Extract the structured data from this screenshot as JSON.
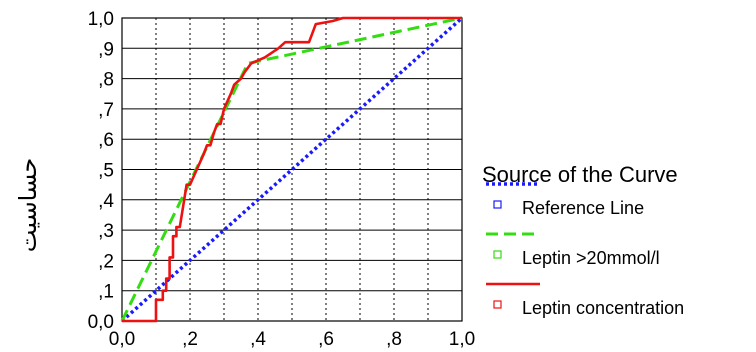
{
  "chart_data": {
    "type": "line",
    "ylabel": "حساسیت",
    "xlabel": "",
    "xlim": [
      0,
      1
    ],
    "ylim": [
      0,
      1
    ],
    "x_ticks": [
      "0,0",
      ",2",
      ",4",
      ",6",
      ",8",
      "1,0"
    ],
    "y_ticks": [
      "0,0",
      ",1",
      ",2",
      ",3",
      ",4",
      ",5",
      ",6",
      ",7",
      ",8",
      ",9",
      "1,0"
    ],
    "grid": {
      "horizontal": "solid",
      "vertical": "dotted"
    },
    "legend": {
      "title": "Source of the Curve",
      "placement": "right"
    },
    "series": [
      {
        "name": "Reference Line",
        "color": "#1a1aff",
        "dash": "dotted",
        "points": [
          [
            0,
            0
          ],
          [
            1,
            1
          ]
        ]
      },
      {
        "name": "Leptin >20mmol/l",
        "color": "#33dd11",
        "dash": "dashed",
        "points": [
          [
            0,
            0
          ],
          [
            0.37,
            0.85
          ],
          [
            1,
            1
          ]
        ]
      },
      {
        "name": "Leptin concentration",
        "color": "#ee1111",
        "dash": "solid",
        "points": [
          [
            0,
            0
          ],
          [
            0.1,
            0
          ],
          [
            0.1,
            0.07
          ],
          [
            0.12,
            0.07
          ],
          [
            0.12,
            0.1
          ],
          [
            0.13,
            0.1
          ],
          [
            0.13,
            0.14
          ],
          [
            0.14,
            0.14
          ],
          [
            0.14,
            0.21
          ],
          [
            0.15,
            0.21
          ],
          [
            0.15,
            0.28
          ],
          [
            0.16,
            0.28
          ],
          [
            0.16,
            0.31
          ],
          [
            0.17,
            0.31
          ],
          [
            0.18,
            0.38
          ],
          [
            0.19,
            0.45
          ],
          [
            0.2,
            0.45
          ],
          [
            0.22,
            0.5
          ],
          [
            0.24,
            0.55
          ],
          [
            0.25,
            0.58
          ],
          [
            0.26,
            0.58
          ],
          [
            0.27,
            0.62
          ],
          [
            0.28,
            0.65
          ],
          [
            0.29,
            0.65
          ],
          [
            0.3,
            0.7
          ],
          [
            0.32,
            0.75
          ],
          [
            0.33,
            0.78
          ],
          [
            0.35,
            0.8
          ],
          [
            0.36,
            0.82
          ],
          [
            0.38,
            0.85
          ],
          [
            0.42,
            0.87
          ],
          [
            0.46,
            0.9
          ],
          [
            0.48,
            0.92
          ],
          [
            0.55,
            0.92
          ],
          [
            0.56,
            0.95
          ],
          [
            0.57,
            0.98
          ],
          [
            0.62,
            0.99
          ],
          [
            0.65,
            1
          ],
          [
            1,
            1
          ]
        ]
      }
    ]
  }
}
